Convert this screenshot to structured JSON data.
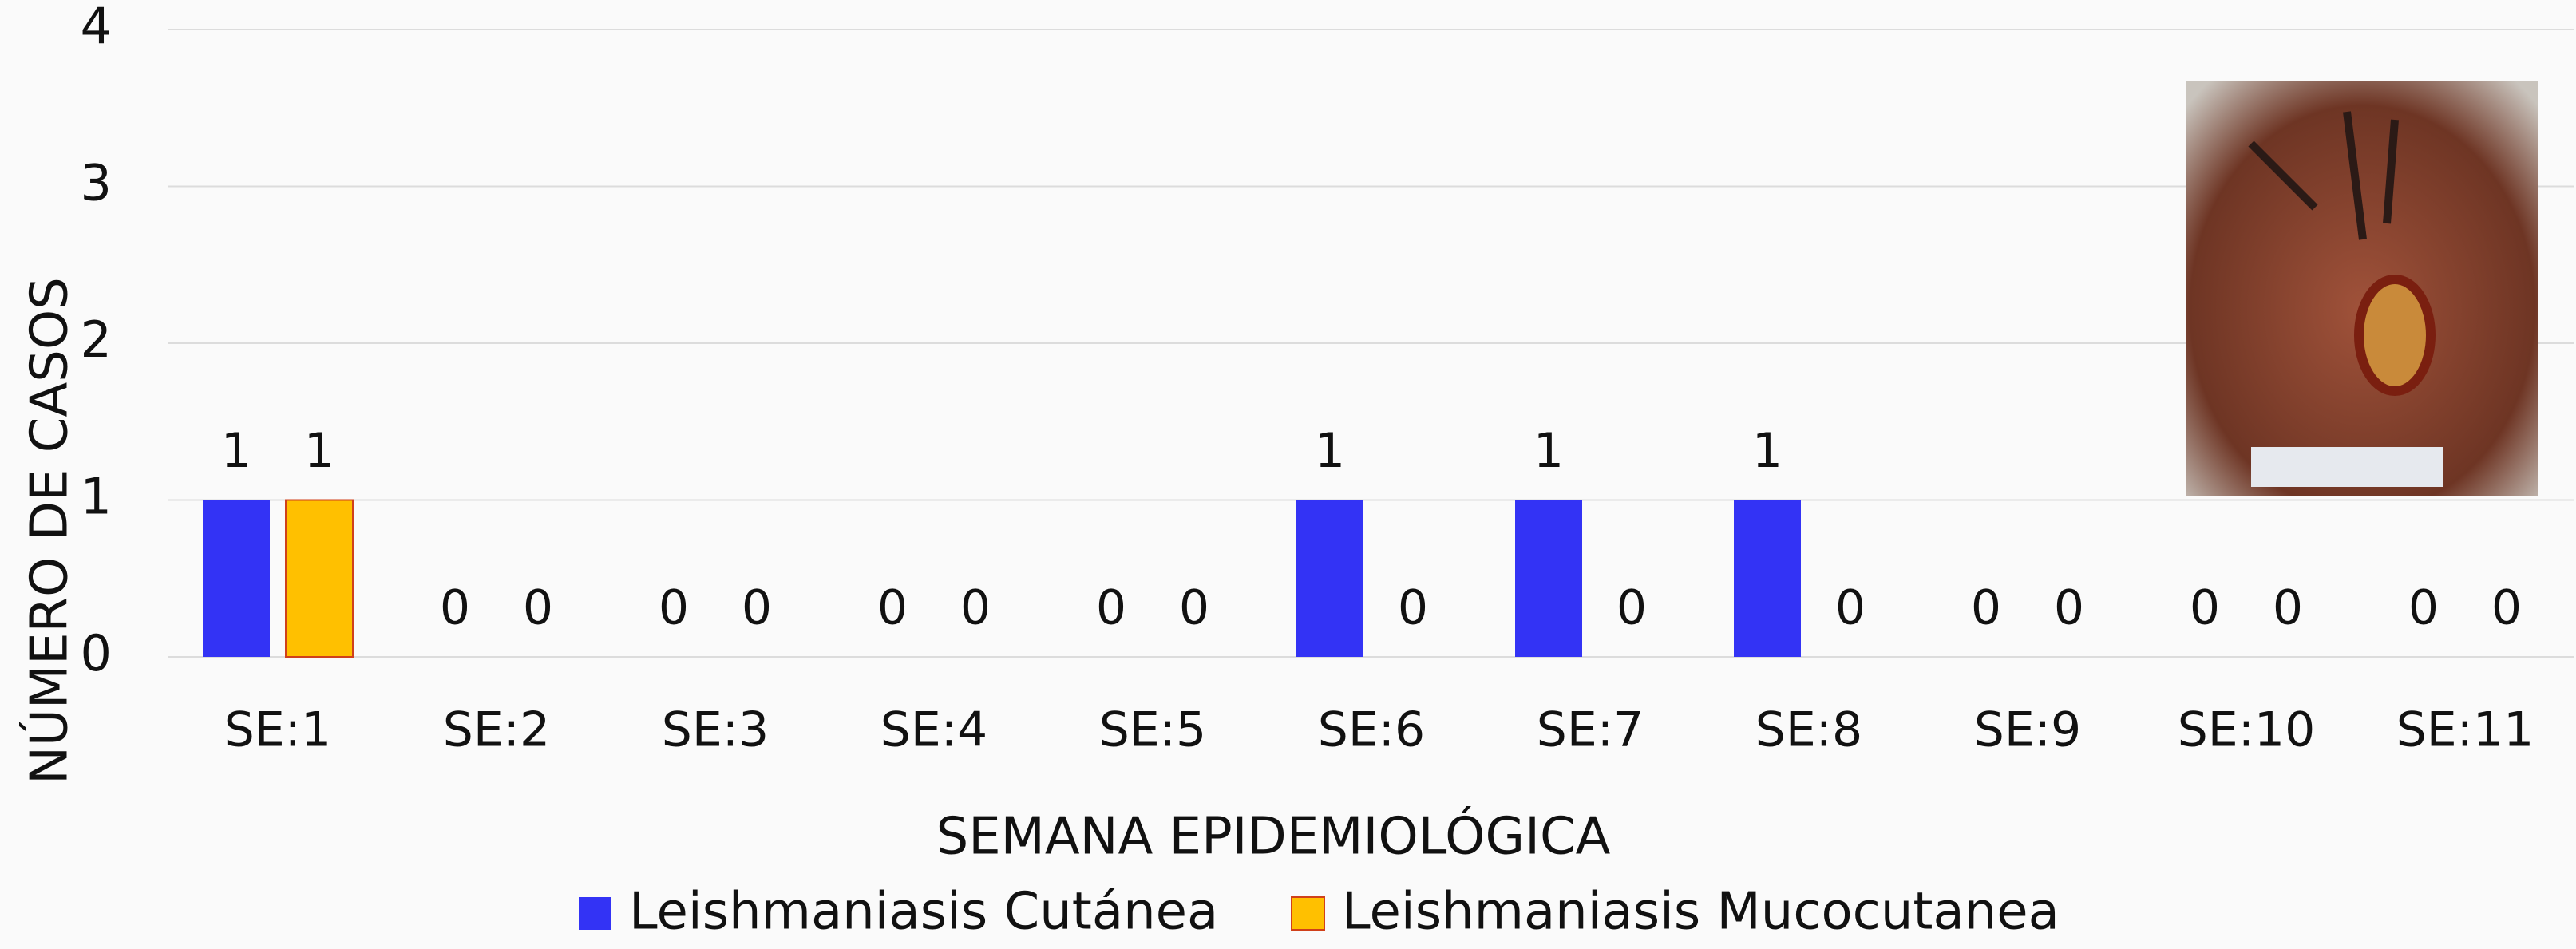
{
  "chart_data": {
    "type": "bar",
    "x_label": "SEMANA EPIDEMIOLÓGICA",
    "y_label": "NÚMERO DE CASOS",
    "categories": [
      "SE:1",
      "SE:2",
      "SE:3",
      "SE:4",
      "SE:5",
      "SE:6",
      "SE:7",
      "SE:8",
      "SE:9",
      "SE:10",
      "SE:11"
    ],
    "series": [
      {
        "name": "Leishmaniasis Cutánea",
        "color": "#3333f5",
        "values": [
          1,
          0,
          0,
          0,
          0,
          1,
          1,
          1,
          0,
          0,
          0
        ]
      },
      {
        "name": "Leishmaniasis Mucocutanea",
        "color": "#ffc000",
        "values": [
          1,
          0,
          0,
          0,
          0,
          0,
          0,
          0,
          0,
          0,
          0
        ]
      }
    ],
    "ylim": [
      0,
      4
    ],
    "yticks": [
      0,
      1,
      2,
      3,
      4
    ],
    "grid": true,
    "legend": "bottom"
  }
}
